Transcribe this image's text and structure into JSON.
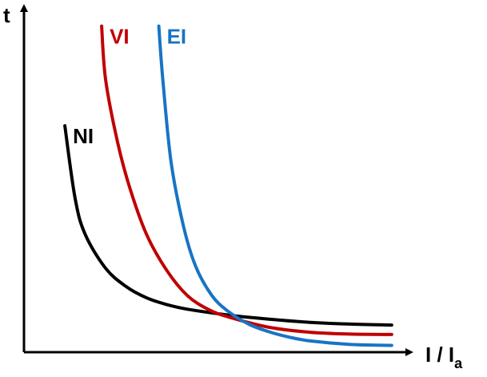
{
  "chart_data": {
    "type": "line",
    "title": "",
    "xlabel": {
      "main": "I / I",
      "subscript": "a"
    },
    "ylabel": "t",
    "grid": false,
    "legend": "none",
    "series": [
      {
        "name": "NI",
        "color": "#000000",
        "points": [
          [
            1.0,
            5.0
          ],
          [
            1.25,
            3.4
          ],
          [
            1.5,
            2.6
          ],
          [
            2.0,
            1.85
          ],
          [
            2.5,
            1.45
          ],
          [
            3.0,
            1.2
          ],
          [
            3.5,
            1.05
          ],
          [
            4.0,
            0.95
          ],
          [
            5.0,
            0.82
          ],
          [
            6.0,
            0.73
          ],
          [
            7.0,
            0.66
          ],
          [
            8.0,
            0.62
          ],
          [
            9.0,
            0.6
          ]
        ]
      },
      {
        "name": "VI",
        "color": "#c00000",
        "points": [
          [
            1.9,
            7.2
          ],
          [
            2.0,
            6.0
          ],
          [
            2.3,
            4.6
          ],
          [
            2.6,
            3.6
          ],
          [
            3.0,
            2.6
          ],
          [
            3.5,
            1.8
          ],
          [
            4.0,
            1.25
          ],
          [
            4.5,
            0.95
          ],
          [
            5.0,
            0.78
          ],
          [
            6.0,
            0.55
          ],
          [
            7.0,
            0.44
          ],
          [
            8.0,
            0.4
          ],
          [
            9.0,
            0.39
          ]
        ]
      },
      {
        "name": "EI",
        "color": "#1874c4",
        "points": [
          [
            3.3,
            7.2
          ],
          [
            3.4,
            6.0
          ],
          [
            3.6,
            4.2
          ],
          [
            3.9,
            2.8
          ],
          [
            4.2,
            1.9
          ],
          [
            4.6,
            1.25
          ],
          [
            5.0,
            0.9
          ],
          [
            5.5,
            0.62
          ],
          [
            6.0,
            0.45
          ],
          [
            6.5,
            0.33
          ],
          [
            7.0,
            0.25
          ],
          [
            8.0,
            0.17
          ],
          [
            9.0,
            0.15
          ]
        ]
      }
    ]
  }
}
